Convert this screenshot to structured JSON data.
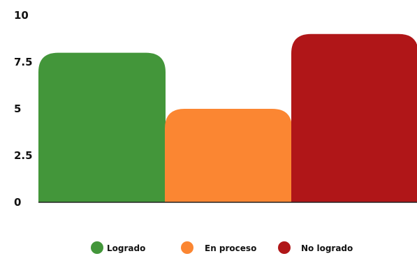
{
  "chart_data": {
    "type": "bar",
    "title": "",
    "xlabel": "",
    "ylabel": "",
    "ylim": [
      0,
      10
    ],
    "yticks": [
      {
        "value": 0,
        "label": "0"
      },
      {
        "value": 2.5,
        "label": "2.5"
      },
      {
        "value": 5,
        "label": "5"
      },
      {
        "value": 7.5,
        "label": "7.5"
      },
      {
        "value": 10,
        "label": "10"
      }
    ],
    "grid": false,
    "legend_position": "bottom",
    "categories": [
      "Logrado",
      "En proceso",
      "No logrado"
    ],
    "values": [
      8,
      5,
      9
    ],
    "colors": [
      "#43963a",
      "#fb8632",
      "#b01618"
    ]
  }
}
